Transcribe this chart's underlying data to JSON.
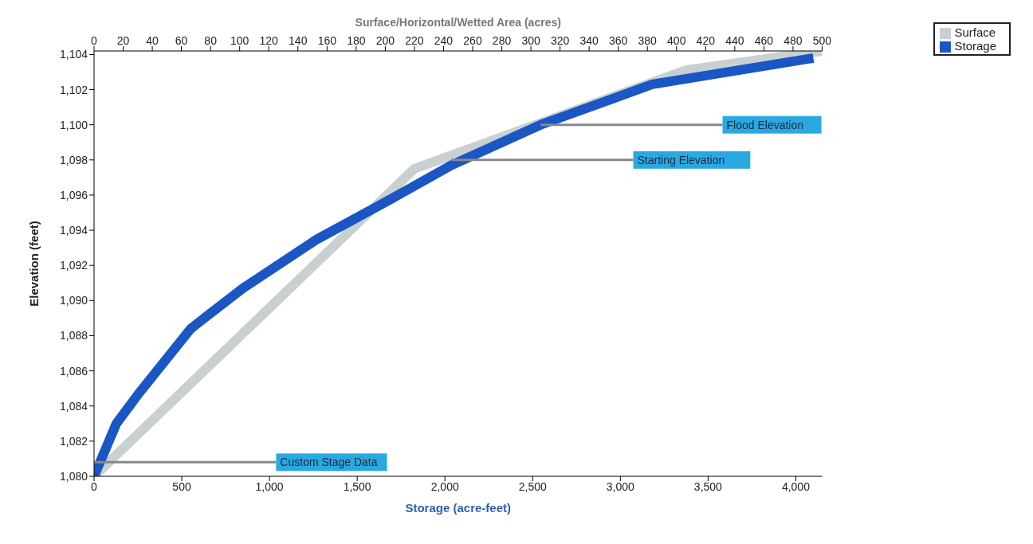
{
  "chart_data": {
    "type": "line",
    "xlabel": "Storage (acre-feet)",
    "x2label": "Surface/Horizontal/Wetted Area (acres)",
    "ylabel": "Elevation  (feet)",
    "xlim": [
      0,
      4150
    ],
    "xticks": [
      0,
      500,
      {
        "value": 1000,
        "label": "1,000"
      },
      {
        "value": 1500,
        "label": "1,500"
      },
      {
        "value": 2000,
        "label": "2,000"
      },
      {
        "value": 2500,
        "label": "2,500"
      },
      {
        "value": 3000,
        "label": "3,000"
      },
      {
        "value": 3500,
        "label": "3,500"
      },
      {
        "value": 4000,
        "label": "4,000"
      }
    ],
    "x2lim": [
      0,
      500
    ],
    "x2ticks": [
      0,
      20,
      40,
      60,
      80,
      100,
      120,
      140,
      160,
      180,
      200,
      220,
      240,
      260,
      280,
      300,
      320,
      340,
      360,
      380,
      400,
      420,
      440,
      460,
      480,
      500
    ],
    "ylim": [
      1080,
      1104.2
    ],
    "yticks": [
      {
        "value": 1080,
        "label": "1,080"
      },
      {
        "value": 1082,
        "label": "1,082"
      },
      {
        "value": 1084,
        "label": "1,084"
      },
      {
        "value": 1086,
        "label": "1,086"
      },
      {
        "value": 1088,
        "label": "1,088"
      },
      {
        "value": 1090,
        "label": "1,090"
      },
      {
        "value": 1092,
        "label": "1,092"
      },
      {
        "value": 1094,
        "label": "1,094"
      },
      {
        "value": 1096,
        "label": "1,096"
      },
      {
        "value": 1098,
        "label": "1,098"
      },
      {
        "value": 1100,
        "label": "1,100"
      },
      {
        "value": 1102,
        "label": "1,102"
      },
      {
        "value": 1104,
        "label": "1,104"
      }
    ],
    "series": [
      {
        "name": "Surface",
        "color": "#c9d0d2",
        "axis": "x2",
        "x": [
          0,
          220,
          406,
          500
        ],
        "values": [
          1080,
          1097.5,
          1103.1,
          1104.2
        ]
      },
      {
        "name": "Storage",
        "color": "#1a56c4",
        "x": [
          0,
          127,
          254,
          551,
          848,
          1273,
          1697,
          2036,
          2545,
          3181,
          4100
        ],
        "values": [
          1080,
          1083,
          1084.7,
          1088.4,
          1090.7,
          1093.5,
          1095.8,
          1097.7,
          1100,
          1102.3,
          1103.8
        ]
      }
    ],
    "annotations": [
      {
        "text": "Flood Elevation",
        "x": 2545,
        "y": 1100
      },
      {
        "text": "Starting Elevation",
        "x": 2036,
        "y": 1098
      },
      {
        "text": "Custom Stage Data",
        "x": 0,
        "y": 1080.8
      }
    ],
    "grid": false,
    "legend": "top right",
    "marker": "none",
    "line_style": "solid"
  }
}
